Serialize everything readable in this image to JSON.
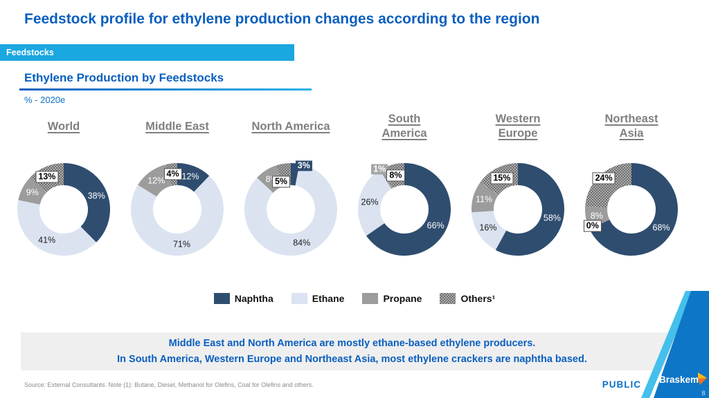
{
  "slide": {
    "title": "Feedstock profile for ethylene production changes according to the region",
    "tag_banner": "Feedstocks",
    "section_title": "Ethylene Production by Feedstocks",
    "unit_label": "% - 2020e",
    "callout_lines": [
      "Middle East and North America are mostly ethane-based ethylene producers.",
      "In South America, Western Europe and Northeast Asia, most ethylene crackers are naphtha based."
    ],
    "footnote": "Source: External Consultants. Note (1): Butane, Diesel, Methanol for Olefins, Coal for Olefins and others.",
    "classification": "PUBLIC",
    "brand": "Braskem",
    "page_number": "8"
  },
  "colors": {
    "heading_blue": "#0A5FBF",
    "banner_cyan": "#1BA7E0",
    "region_title_gray": "#7F7F7F",
    "callout_bg": "#EFEFEF",
    "corner_blue": "#0E76C6",
    "corner_light_blue": "#45BFEC",
    "logo_yellow": "#FDB913",
    "logo_orange": "#F37021"
  },
  "chart_data": {
    "type": "pie",
    "subtype": "donut",
    "unit": "% - 2020e",
    "series": [
      "Naphtha",
      "Ethane",
      "Propane",
      "Others¹"
    ],
    "series_colors": {
      "naphtha": "#2F4D6F",
      "ethane": "#DBE3F1",
      "propane": "#9C9C9C",
      "others_pattern_base": "#6F6F6F",
      "others_pattern_dot": "#E0E0E0"
    },
    "legend_position": "bottom-center",
    "charts": [
      {
        "region": "World",
        "title_lines": [
          "World"
        ],
        "values": [
          38,
          41,
          9,
          13
        ],
        "label_styles": [
          "w",
          "b",
          "w",
          "boxw"
        ],
        "label_offsets": {
          "3": [
            -4,
            0
          ]
        }
      },
      {
        "region": "Middle East",
        "title_lines": [
          "Middle East"
        ],
        "values": [
          12,
          71,
          12,
          4
        ],
        "label_styles": [
          "w",
          "b",
          "w",
          "boxw"
        ],
        "label_offsets": {}
      },
      {
        "region": "North America",
        "title_lines": [
          "North America"
        ],
        "values": [
          3,
          84,
          8,
          5
        ],
        "label_styles": [
          "boxn",
          "b",
          "w",
          "boxw"
        ],
        "label_offsets": {
          "0": [
            14,
            -12
          ],
          "3": [
            -6,
            10
          ]
        }
      },
      {
        "region": "South America",
        "title_lines": [
          "South",
          "America"
        ],
        "values": [
          66,
          26,
          1,
          8
        ],
        "label_styles": [
          "w",
          "b",
          "boxg",
          "boxw"
        ],
        "label_offsets": {
          "2": [
            -10,
            -14
          ]
        }
      },
      {
        "region": "Western Europe",
        "title_lines": [
          "Western",
          "Europe"
        ],
        "values": [
          58,
          16,
          11,
          15
        ],
        "label_styles": [
          "w",
          "b",
          "w",
          "boxw"
        ],
        "label_offsets": {}
      },
      {
        "region": "Northeast Asia",
        "title_lines": [
          "Northeast",
          "Asia"
        ],
        "values": [
          68,
          0,
          8,
          24
        ],
        "label_styles": [
          "w",
          "boxw",
          "w",
          "boxw"
        ],
        "label_offsets": {
          "1": [
            -10,
            2
          ],
          "3": [
            -5,
            -8
          ]
        }
      }
    ]
  }
}
